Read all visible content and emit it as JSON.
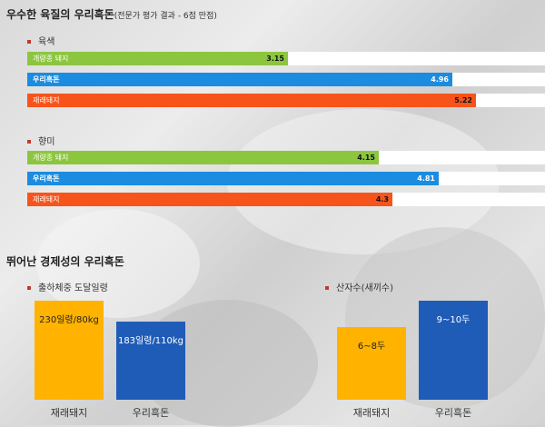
{
  "section1": {
    "title": "우수한 육질의 우리흑돈",
    "title_note": "(전문가 평가 결과 - 6점 만점)"
  },
  "section2": {
    "title": "뛰어난 경제성의 우리흑돈"
  },
  "colors": {
    "green": "#8cc63f",
    "blue": "#1b8ce0",
    "orange": "#f7541b",
    "yellow": "#ffb300",
    "navy": "#1f5cb8"
  },
  "chart_data": [
    {
      "type": "bar",
      "orientation": "horizontal",
      "title": "육색",
      "categories": [
        "개량종 돼지",
        "우리흑돈",
        "재래돼지"
      ],
      "values": [
        3.15,
        4.96,
        5.22
      ],
      "xlim": [
        0,
        6
      ]
    },
    {
      "type": "bar",
      "orientation": "horizontal",
      "title": "향미",
      "categories": [
        "개량종 돼지",
        "우리흑돈",
        "재래돼지"
      ],
      "values": [
        4.15,
        4.81,
        4.3
      ],
      "xlim": [
        0,
        6
      ]
    },
    {
      "type": "bar",
      "title": "출하체중 도달일령",
      "categories": [
        "재래돼지",
        "우리흑돈"
      ],
      "values": [
        230,
        183
      ],
      "data_labels": [
        "230일령/80kg",
        "183일령/110kg"
      ],
      "ylim": [
        0,
        250
      ]
    },
    {
      "type": "bar",
      "title": "산자수(새끼수)",
      "categories": [
        "재래돼지",
        "우리흑돈"
      ],
      "values": [
        7,
        9.5
      ],
      "data_labels": [
        "6~8두",
        "9~10두"
      ],
      "ylim": [
        0,
        10.5
      ]
    }
  ]
}
